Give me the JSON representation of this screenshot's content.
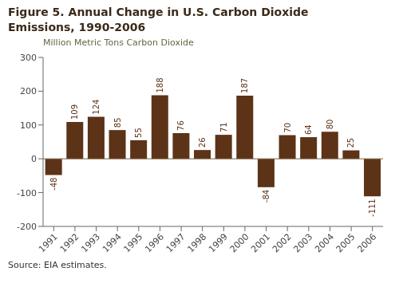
{
  "chart_data": {
    "type": "bar",
    "title": [
      "Figure 5.  Annual Change in U.S. Carbon Dioxide",
      "Emissions, 1990-2006"
    ],
    "subtitle": "Million Metric Tons Carbon Dioxide",
    "annotations": [
      "Source: EIA estimates."
    ],
    "categories": [
      "1991",
      "1992",
      "1993",
      "1994",
      "1995",
      "1996",
      "1997",
      "1998",
      "1999",
      "2000",
      "2001",
      "2002",
      "2003",
      "2004",
      "2005",
      "2006"
    ],
    "values": [
      -48,
      109,
      124,
      85,
      55,
      188,
      76,
      26,
      71,
      187,
      -84,
      70,
      64,
      80,
      25,
      -111
    ],
    "color": "#5C3317",
    "ylim": [
      -200,
      300
    ],
    "yticks": [
      -200,
      -100,
      0,
      100,
      200,
      300
    ],
    "grid": false,
    "data_labels": true
  }
}
